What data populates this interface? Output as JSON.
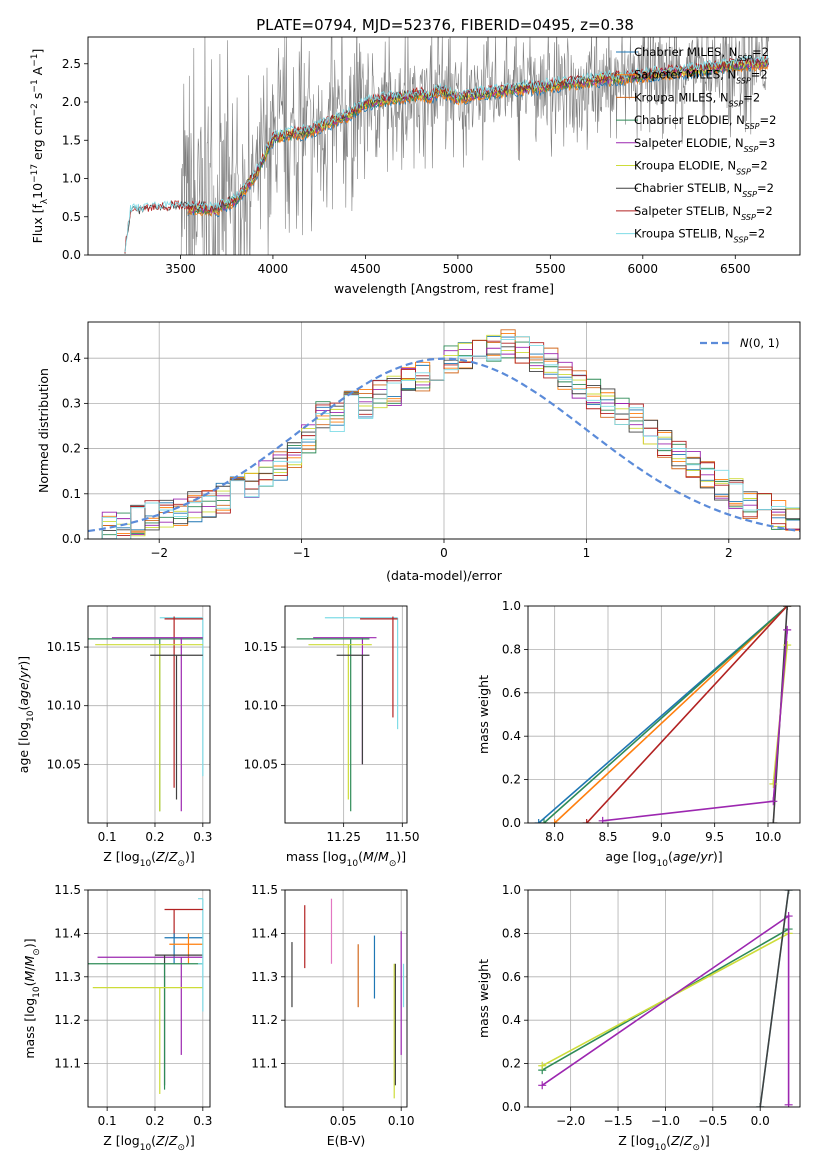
{
  "figure": {
    "title": "PLATE=0794, MJD=52376, FIBERID=0495, z=0.38"
  },
  "colors": {
    "chabrier_miles": "#1f77b4",
    "salpeter_miles": "#ff7f0e",
    "kroupa_miles": "#d2691e",
    "chabrier_elodie": "#2e8b57",
    "salpeter_elodie": "#9c27b0",
    "kroupa_elodie": "#cddc39",
    "chabrier_stelib": "#404040",
    "salpeter_stelib": "#b22222",
    "kroupa_stelib": "#7fdbe6",
    "data": "#808080",
    "normal": "#5b8bd9",
    "grid": "#b0b0b0"
  },
  "chart_data": [
    {
      "type": "line",
      "panel": "spectrum",
      "title": "PLATE=0794, MJD=52376, FIBERID=0495, z=0.38",
      "xlabel": "wavelength [Angstrom, rest frame]",
      "ylabel": "Flux [f_λ 10^-17 erg cm^-2 s^-1 A^-1]",
      "xlim": [
        3000,
        6850
      ],
      "ylim": [
        0,
        2.85
      ],
      "xticks": [
        3500,
        4000,
        4500,
        5000,
        5500,
        6000,
        6500
      ],
      "yticks": [
        0.0,
        0.5,
        1.0,
        1.5,
        2.0,
        2.5
      ],
      "grid": false,
      "legend_position": "top-right",
      "data_series": {
        "name": "data",
        "x": [
          3200,
          3500,
          3700,
          3800,
          3900,
          4000,
          4100,
          4200,
          4300,
          4400,
          4500,
          4600,
          4700,
          4800,
          4850,
          4900,
          5000,
          5100,
          5200,
          5300,
          5400,
          5500,
          5600,
          5700,
          5800,
          5900,
          6000,
          6100,
          6200,
          6300,
          6400,
          6500,
          6600,
          6680
        ],
        "y": [
          0.55,
          0.62,
          0.6,
          0.72,
          1.02,
          1.52,
          1.58,
          1.62,
          1.72,
          1.82,
          1.98,
          2.03,
          2.06,
          2.1,
          2.05,
          2.16,
          2.05,
          2.1,
          2.13,
          2.16,
          2.19,
          2.21,
          2.24,
          2.27,
          2.3,
          2.32,
          2.34,
          2.38,
          2.4,
          2.42,
          2.45,
          2.48,
          2.5,
          2.52
        ]
      },
      "series": [
        {
          "label": "Chabrier MILES, N",
          "sub": "SSP",
          "suffix": "=2",
          "color_key": "chabrier_miles"
        },
        {
          "label": "Salpeter MILES, N",
          "sub": "SSP",
          "suffix": "=2",
          "color_key": "salpeter_miles"
        },
        {
          "label": "Kroupa MILES, N",
          "sub": "SSP",
          "suffix": "=2",
          "color_key": "kroupa_miles"
        },
        {
          "label": "Chabrier ELODIE, N",
          "sub": "SSP",
          "suffix": "=2",
          "color_key": "chabrier_elodie"
        },
        {
          "label": "Salpeter ELODIE, N",
          "sub": "SSP",
          "suffix": "=3",
          "color_key": "salpeter_elodie"
        },
        {
          "label": "Kroupa ELODIE, N",
          "sub": "SSP",
          "suffix": "=2",
          "color_key": "kroupa_elodie"
        },
        {
          "label": "Chabrier STELIB, N",
          "sub": "SSP",
          "suffix": "=2",
          "color_key": "chabrier_stelib"
        },
        {
          "label": "Salpeter STELIB, N",
          "sub": "SSP",
          "suffix": "=2",
          "color_key": "salpeter_stelib"
        },
        {
          "label": "Kroupa STELIB, N",
          "sub": "SSP",
          "suffix": "=2",
          "color_key": "kroupa_stelib"
        }
      ]
    },
    {
      "type": "line",
      "panel": "residuals",
      "xlabel": "(data-model)/error",
      "ylabel": "Normed distribution",
      "xlim": [
        -2.5,
        2.5
      ],
      "ylim": [
        0,
        0.48
      ],
      "xticks": [
        -2,
        -1,
        0,
        1,
        2
      ],
      "yticks": [
        0.0,
        0.1,
        0.2,
        0.3,
        0.4
      ],
      "grid": true,
      "legend_position": "top-right",
      "legend_label": "N(0,1)",
      "bin_width": 0.1,
      "bin_start": -2.5,
      "hist_values": [
        0.02,
        0.03,
        0.03,
        0.04,
        0.05,
        0.06,
        0.06,
        0.07,
        0.08,
        0.09,
        0.11,
        0.12,
        0.14,
        0.16,
        0.19,
        0.22,
        0.27,
        0.27,
        0.3,
        0.3,
        0.32,
        0.33,
        0.35,
        0.36,
        0.37,
        0.4,
        0.41,
        0.42,
        0.42,
        0.43,
        0.42,
        0.4,
        0.39,
        0.36,
        0.34,
        0.32,
        0.3,
        0.28,
        0.27,
        0.24,
        0.21,
        0.19,
        0.16,
        0.14,
        0.12,
        0.1,
        0.08,
        0.07,
        0.05,
        0.04
      ]
    },
    {
      "type": "scatter",
      "panel": "age-vs-Z",
      "xlabel": "Z [log10(Z/Z⊙)]",
      "ylabel": "age [log10(age/yr)]",
      "xlim": [
        0.06,
        0.315
      ],
      "ylim": [
        10.0,
        10.185
      ],
      "xticks": [
        0.1,
        0.2,
        0.3
      ],
      "yticks": [
        10.05,
        10.1,
        10.15
      ],
      "grid": true,
      "points": [
        {
          "x": 0.3,
          "y": 10.175,
          "xlo": 0.21,
          "xhi": 0.3,
          "ylo": 10.04,
          "yhi": 10.175,
          "c": "kroupa_stelib"
        },
        {
          "x": 0.24,
          "y": 10.174,
          "xlo": 0.22,
          "xhi": 0.3,
          "ylo": 10.03,
          "yhi": 10.176,
          "c": "salpeter_stelib"
        },
        {
          "x": 0.21,
          "y": 10.157,
          "xlo": 0.06,
          "xhi": 0.3,
          "ylo": 10.01,
          "yhi": 10.157,
          "c": "chabrier_elodie"
        },
        {
          "x": 0.255,
          "y": 10.158,
          "xlo": 0.11,
          "xhi": 0.3,
          "ylo": 10.01,
          "yhi": 10.158,
          "c": "salpeter_elodie"
        },
        {
          "x": 0.21,
          "y": 10.152,
          "xlo": 0.075,
          "xhi": 0.3,
          "ylo": 10.01,
          "yhi": 10.152,
          "c": "kroupa_elodie"
        },
        {
          "x": 0.245,
          "y": 10.143,
          "xlo": 0.19,
          "xhi": 0.3,
          "ylo": 10.02,
          "yhi": 10.143,
          "c": "chabrier_stelib"
        }
      ]
    },
    {
      "type": "scatter",
      "panel": "age-vs-mass",
      "xlabel": "mass [log10(M/M⊙)]",
      "ylabel": "",
      "xlim": [
        11.0,
        11.52
      ],
      "ylim": [
        10.0,
        10.185
      ],
      "xticks": [
        11.25,
        11.5
      ],
      "yticks": [
        10.05,
        10.1,
        10.15
      ],
      "grid": true,
      "points": [
        {
          "x": 11.48,
          "y": 10.175,
          "xlo": 11.17,
          "xhi": 11.48,
          "ylo": 10.08,
          "yhi": 10.175,
          "c": "kroupa_stelib"
        },
        {
          "x": 11.46,
          "y": 10.174,
          "xlo": 11.32,
          "xhi": 11.48,
          "ylo": 10.09,
          "yhi": 10.176,
          "c": "salpeter_stelib"
        },
        {
          "x": 11.33,
          "y": 10.158,
          "xlo": 11.12,
          "xhi": 11.39,
          "ylo": 10.05,
          "yhi": 10.158,
          "c": "salpeter_elodie"
        },
        {
          "x": 11.28,
          "y": 10.157,
          "xlo": 11.05,
          "xhi": 11.36,
          "ylo": 10.01,
          "yhi": 10.157,
          "c": "chabrier_elodie"
        },
        {
          "x": 11.27,
          "y": 10.152,
          "xlo": 11.1,
          "xhi": 11.37,
          "ylo": 10.02,
          "yhi": 10.152,
          "c": "kroupa_elodie"
        },
        {
          "x": 11.33,
          "y": 10.143,
          "xlo": 11.22,
          "xhi": 11.36,
          "ylo": 10.05,
          "yhi": 10.143,
          "c": "chabrier_stelib"
        }
      ]
    },
    {
      "type": "line",
      "panel": "weight-vs-age",
      "xlabel": "age [log10(age/yr)]",
      "ylabel": "mass weight",
      "xlim": [
        7.75,
        10.3
      ],
      "ylim": [
        0,
        1.0
      ],
      "xticks": [
        8.0,
        8.5,
        9.0,
        9.5,
        10.0
      ],
      "yticks": [
        0.0,
        0.2,
        0.4,
        0.6,
        0.8,
        1.0
      ],
      "grid": true,
      "series": [
        {
          "c": "chabrier_miles",
          "x": [
            7.85,
            10.18
          ],
          "y": [
            0.0,
            1.0
          ]
        },
        {
          "c": "salpeter_miles",
          "x": [
            8.0,
            10.18
          ],
          "y": [
            0.0,
            1.0
          ]
        },
        {
          "c": "chabrier_elodie",
          "x": [
            7.9,
            10.18
          ],
          "y": [
            0.0,
            1.0
          ]
        },
        {
          "c": "salpeter_stelib",
          "x": [
            8.3,
            10.18
          ],
          "y": [
            0.0,
            1.0
          ]
        },
        {
          "c": "chabrier_stelib",
          "x": [
            10.18,
            10.05
          ],
          "y": [
            1.0,
            0.0
          ]
        },
        {
          "c": "kroupa_elodie",
          "x": [
            10.05,
            10.18
          ],
          "y": [
            0.18,
            0.82
          ]
        },
        {
          "c": "salpeter_elodie",
          "x": [
            8.45,
            10.05,
            10.18
          ],
          "y": [
            0.01,
            0.1,
            0.89
          ]
        }
      ]
    },
    {
      "type": "scatter",
      "panel": "mass-vs-Z",
      "xlabel": "Z [log10(Z/Z⊙)]",
      "ylabel": "mass [log10(M/M⊙)]",
      "xlim": [
        0.06,
        0.315
      ],
      "ylim": [
        11.0,
        11.5
      ],
      "xticks": [
        0.1,
        0.2,
        0.3
      ],
      "yticks": [
        11.1,
        11.2,
        11.3,
        11.4,
        11.5
      ],
      "grid": true,
      "points": [
        {
          "x": 0.3,
          "y": 11.48,
          "xlo": 0.29,
          "xhi": 0.3,
          "ylo": 11.4,
          "yhi": 11.48,
          "c": "kroupa_stelib"
        },
        {
          "x": 0.24,
          "y": 11.455,
          "xlo": 0.22,
          "xhi": 0.3,
          "ylo": 11.39,
          "yhi": 11.455,
          "c": "salpeter_stelib"
        },
        {
          "x": 0.24,
          "y": 11.39,
          "xlo": 0.22,
          "xhi": 0.3,
          "ylo": 11.33,
          "yhi": 11.4,
          "c": "chabrier_miles"
        },
        {
          "x": 0.27,
          "y": 11.375,
          "xlo": 0.23,
          "xhi": 0.3,
          "ylo": 11.33,
          "yhi": 11.4,
          "c": "salpeter_miles"
        },
        {
          "x": 0.255,
          "y": 11.345,
          "xlo": 0.08,
          "xhi": 0.3,
          "ylo": 11.12,
          "yhi": 11.345,
          "c": "salpeter_elodie"
        },
        {
          "x": 0.22,
          "y": 11.35,
          "xlo": 0.2,
          "xhi": 0.3,
          "ylo": 11.05,
          "yhi": 11.35,
          "c": "chabrier_stelib"
        },
        {
          "x": 0.22,
          "y": 11.33,
          "xlo": 0.06,
          "xhi": 0.3,
          "ylo": 11.04,
          "yhi": 11.33,
          "c": "chabrier_elodie"
        },
        {
          "x": 0.21,
          "y": 11.275,
          "xlo": 0.07,
          "xhi": 0.3,
          "ylo": 11.03,
          "yhi": 11.275,
          "c": "kroupa_elodie"
        },
        {
          "x": 0.3,
          "y": 11.33,
          "xlo": 0.29,
          "xhi": 0.3,
          "ylo": 11.22,
          "yhi": 11.4,
          "c": "kroupa_stelib"
        }
      ]
    },
    {
      "type": "scatter",
      "panel": "mass-vs-EBV",
      "xlabel": "E(B-V)",
      "ylabel": "",
      "xlim": [
        0.0,
        0.105
      ],
      "ylim": [
        11.0,
        11.5
      ],
      "xticks": [
        0.05,
        0.1
      ],
      "yticks": [
        11.1,
        11.2,
        11.3,
        11.4,
        11.5
      ],
      "grid": true,
      "points": [
        {
          "x": 0.006,
          "ylo": 11.23,
          "yhi": 11.38,
          "c": "chabrier_stelib"
        },
        {
          "x": 0.017,
          "ylo": 11.32,
          "yhi": 11.465,
          "c": "salpeter_stelib"
        },
        {
          "x": 0.04,
          "ylo": 11.33,
          "yhi": 11.48,
          "c": "kroupa_stelib_pink"
        },
        {
          "x": 0.063,
          "ylo": 11.23,
          "yhi": 11.375,
          "c": "kroupa_miles"
        },
        {
          "x": 0.077,
          "ylo": 11.25,
          "yhi": 11.395,
          "c": "chabrier_miles"
        },
        {
          "x": 0.094,
          "ylo": 11.02,
          "yhi": 11.33,
          "c": "kroupa_elodie"
        },
        {
          "x": 0.095,
          "ylo": 11.05,
          "yhi": 11.33,
          "c": "chabrier_stelib"
        },
        {
          "x": 0.1,
          "ylo": 11.12,
          "yhi": 11.405,
          "c": "salpeter_elodie"
        },
        {
          "x": 0.102,
          "ylo": 11.23,
          "yhi": 11.33,
          "c": "kroupa_stelib"
        }
      ]
    },
    {
      "type": "line",
      "panel": "weight-vs-Z",
      "xlabel": "Z [log10(Z/Z⊙)]",
      "ylabel": "mass weight",
      "xlim": [
        -2.45,
        0.42
      ],
      "ylim": [
        0,
        1.0
      ],
      "xticks": [
        -2.0,
        -1.5,
        -1.0,
        -0.5,
        0.0
      ],
      "yticks": [
        0.0,
        0.2,
        0.4,
        0.6,
        0.8,
        1.0
      ],
      "grid": true,
      "series": [
        {
          "c": "chabrier_elodie",
          "x": [
            -2.3,
            0.3
          ],
          "y": [
            0.17,
            0.82
          ]
        },
        {
          "c": "kroupa_elodie",
          "x": [
            -2.3,
            0.3
          ],
          "y": [
            0.19,
            0.8
          ]
        },
        {
          "c": "salpeter_elodie",
          "x": [
            -2.3,
            0.3,
            0.3
          ],
          "y": [
            0.1,
            0.88,
            0.01
          ]
        },
        {
          "c": "kroupa_stelib",
          "x": [
            0.0,
            0.3
          ],
          "y": [
            0.0,
            1.0
          ]
        },
        {
          "c": "chabrier_stelib",
          "x": [
            0.0,
            0.3
          ],
          "y": [
            0.0,
            1.0
          ]
        }
      ]
    }
  ]
}
